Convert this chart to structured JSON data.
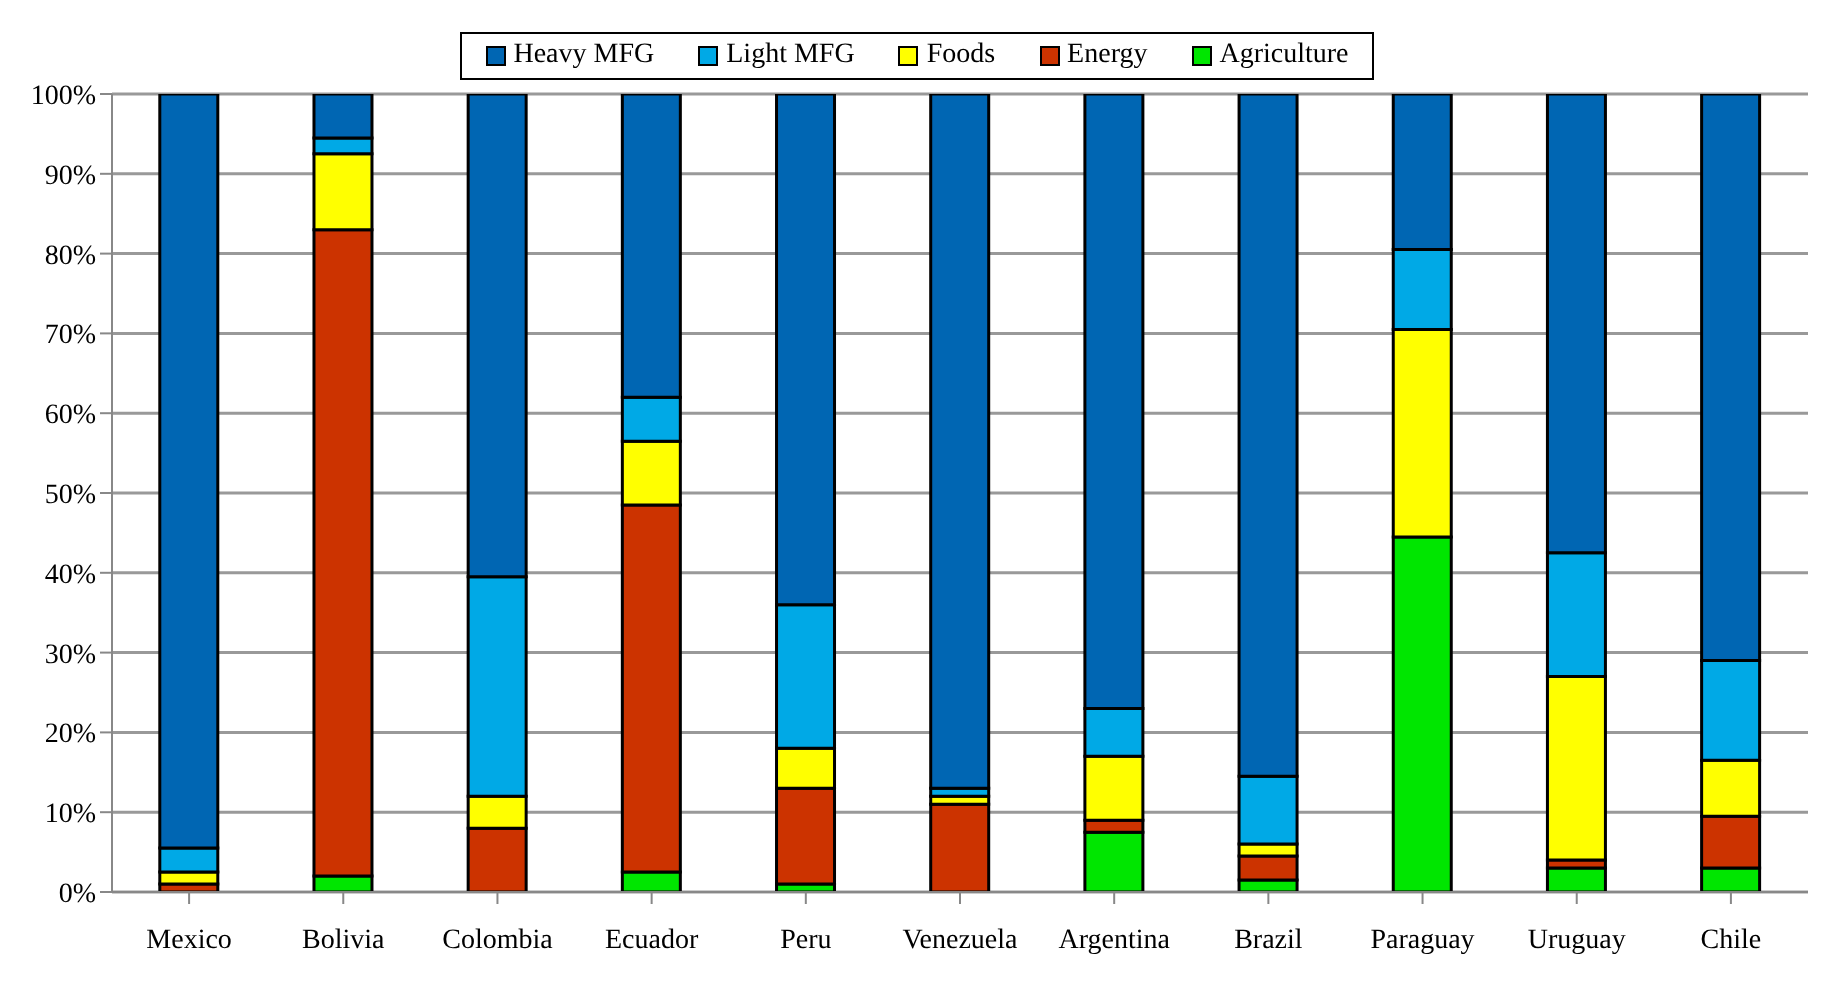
{
  "chart_data": {
    "type": "bar",
    "stacked": true,
    "categories": [
      "Mexico",
      "Bolivia",
      "Colombia",
      "Ecuador",
      "Peru",
      "Venezuela",
      "Argentina",
      "Brazil",
      "Paraguay",
      "Uruguay",
      "Chile"
    ],
    "series": [
      {
        "name": "Agriculture",
        "color": "#00e600",
        "values": [
          0,
          2,
          0,
          2.5,
          1,
          0,
          7.5,
          1.5,
          44.5,
          3,
          3
        ]
      },
      {
        "name": "Energy",
        "color": "#cc3300",
        "values": [
          1,
          81,
          8,
          46,
          12,
          11,
          1.5,
          3,
          0,
          1,
          6.5
        ]
      },
      {
        "name": "Foods",
        "color": "#ffff00",
        "values": [
          1.5,
          9.5,
          4,
          8,
          5,
          1,
          8,
          1.5,
          26,
          23,
          7
        ]
      },
      {
        "name": "Light MFG",
        "color": "#00a9e6",
        "values": [
          3,
          2,
          27.5,
          5.5,
          18,
          1,
          6,
          8.5,
          10,
          15.5,
          12.5
        ]
      },
      {
        "name": "Heavy MFG",
        "color": "#0066b3",
        "values": [
          94.5,
          5.5,
          60.5,
          38,
          64,
          87,
          77,
          85.5,
          19.5,
          57.5,
          71
        ]
      }
    ],
    "ylim": [
      0,
      100
    ],
    "yticks": [
      {
        "value": 0,
        "label": "0%"
      },
      {
        "value": 10,
        "label": "10%"
      },
      {
        "value": 20,
        "label": "20%"
      },
      {
        "value": 30,
        "label": "30%"
      },
      {
        "value": 40,
        "label": "40%"
      },
      {
        "value": 50,
        "label": "50%"
      },
      {
        "value": 60,
        "label": "60%"
      },
      {
        "value": 70,
        "label": "70%"
      },
      {
        "value": 80,
        "label": "80%"
      },
      {
        "value": 90,
        "label": "90%"
      },
      {
        "value": 100,
        "label": "100%"
      }
    ],
    "grid": "y",
    "legend": "top"
  }
}
